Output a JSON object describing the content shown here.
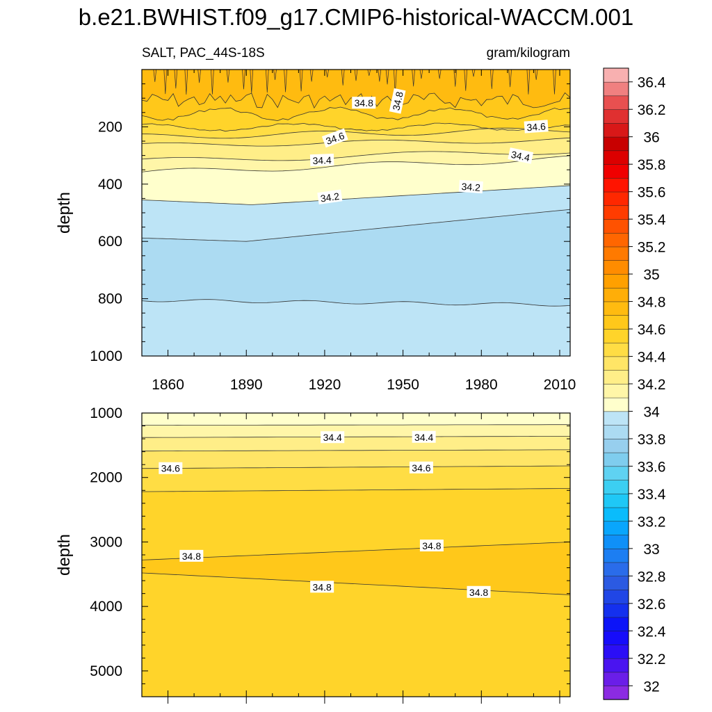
{
  "title": "b.e21.BWHIST.f09_g17.CMIP6-historical-WACCM.001",
  "variable_label": "SALT, PAC_44S-18S",
  "units_label": "gram/kilogram",
  "chart_data": [
    {
      "type": "contour",
      "panel": "upper",
      "xlabel": "",
      "ylabel": "depth",
      "xlim": [
        1850,
        2014
      ],
      "ylim": [
        0,
        1000
      ],
      "y_inverted": true,
      "xticks": [
        1860,
        1890,
        1920,
        1950,
        1980,
        2010
      ],
      "yticks": [
        200,
        400,
        600,
        800,
        1000
      ],
      "contour_levels": [
        34.2,
        34.4,
        34.6,
        34.8
      ],
      "contour_labels": [
        {
          "text": "34.8",
          "x": 1935,
          "y": 117,
          "angle": 0
        },
        {
          "text": "34.8",
          "x": 1948,
          "y": 110,
          "angle": -78
        },
        {
          "text": "34.6",
          "x": 1924,
          "y": 240,
          "angle": -20
        },
        {
          "text": "34.6",
          "x": 2001,
          "y": 200,
          "angle": -4
        },
        {
          "text": "34.4",
          "x": 1919,
          "y": 317,
          "angle": -2
        },
        {
          "text": "34.4",
          "x": 1995,
          "y": 302,
          "angle": 12
        },
        {
          "text": "34.2",
          "x": 1922,
          "y": 446,
          "angle": -8
        },
        {
          "text": "34.2",
          "x": 1976,
          "y": 410,
          "angle": 4
        }
      ]
    },
    {
      "type": "contour",
      "panel": "lower",
      "xlabel": "",
      "ylabel": "depth",
      "xlim": [
        1850,
        2014
      ],
      "ylim": [
        1000,
        5400
      ],
      "y_inverted": true,
      "yticks": [
        1000,
        2000,
        3000,
        4000,
        5000
      ],
      "contour_levels": [
        34.4,
        34.6,
        34.8
      ],
      "contour_labels": [
        {
          "text": "34.4",
          "x": 1923,
          "y": 1380,
          "angle": 0
        },
        {
          "text": "34.4",
          "x": 1958,
          "y": 1375,
          "angle": 0
        },
        {
          "text": "34.6",
          "x": 1861,
          "y": 1860,
          "angle": 0
        },
        {
          "text": "34.6",
          "x": 1957,
          "y": 1850,
          "angle": 0
        },
        {
          "text": "34.8",
          "x": 1869,
          "y": 3220,
          "angle": 0
        },
        {
          "text": "34.8",
          "x": 1961,
          "y": 3060,
          "angle": 0
        },
        {
          "text": "34.8",
          "x": 1919,
          "y": 3700,
          "angle": 0
        },
        {
          "text": "34.8",
          "x": 1979,
          "y": 3780,
          "angle": 0
        }
      ]
    },
    {
      "type": "colorbar",
      "units": "gram/kilogram",
      "levels": [
        32,
        32.1,
        32.2,
        32.3,
        32.4,
        32.5,
        32.6,
        32.7,
        32.8,
        32.9,
        33,
        33.1,
        33.2,
        33.3,
        33.4,
        33.5,
        33.6,
        33.7,
        33.8,
        33.9,
        34,
        34.1,
        34.2,
        34.3,
        34.4,
        34.5,
        34.6,
        34.7,
        34.8,
        34.9,
        35,
        35.1,
        35.2,
        35.3,
        35.4,
        35.5,
        35.6,
        35.7,
        35.8,
        35.9,
        36,
        36.1,
        36.2,
        36.3,
        36.4,
        36.5
      ],
      "tick_labels": [
        "32",
        "32.2",
        "32.4",
        "32.6",
        "32.8",
        "33",
        "33.2",
        "33.4",
        "33.6",
        "33.8",
        "34",
        "34.2",
        "34.4",
        "34.6",
        "34.8",
        "35",
        "35.2",
        "35.4",
        "35.6",
        "35.8",
        "36",
        "36.2",
        "36.4"
      ],
      "colors": [
        "#8b2be2",
        "#6a1ee8",
        "#4a14f0",
        "#2b0ef6",
        "#160cfa",
        "#0c14f8",
        "#1430ee",
        "#2046e6",
        "#2b5ae2",
        "#2a6cea",
        "#1c7ef2",
        "#0f90f8",
        "#09a6fc",
        "#0abcfc",
        "#1fc8f6",
        "#3ccff2",
        "#5fd2f2",
        "#7fcdee",
        "#97cfee",
        "#acdbf2",
        "#bde4f6",
        "#ffffcc",
        "#fff6a8",
        "#ffee88",
        "#ffe566",
        "#ffdd44",
        "#ffd42a",
        "#ffc81a",
        "#ffbb10",
        "#ffae08",
        "#ffa000",
        "#ff8c00",
        "#ff7a00",
        "#ff6600",
        "#ff5200",
        "#ff3c00",
        "#ff2800",
        "#ff1400",
        "#f00000",
        "#dc0000",
        "#c80000",
        "#d81818",
        "#e03030",
        "#e85050",
        "#f08080",
        "#f8b0b0"
      ]
    }
  ]
}
